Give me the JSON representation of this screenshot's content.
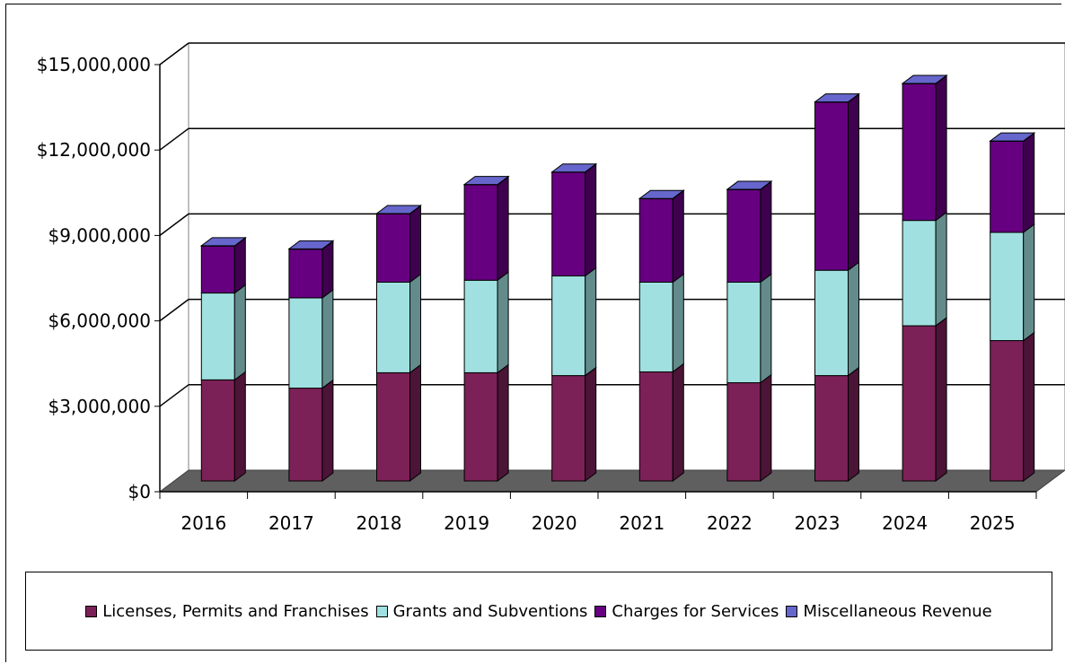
{
  "chart_data": {
    "type": "bar",
    "stacked": true,
    "title": "",
    "xlabel": "",
    "ylabel": "",
    "ylim": [
      0,
      15000000
    ],
    "grid": true,
    "legend_position": "bottom",
    "categories": [
      "2016",
      "2017",
      "2018",
      "2019",
      "2020",
      "2021",
      "2022",
      "2023",
      "2024",
      "2025"
    ],
    "y_tick_labels": [
      "$0",
      "$3,000,000",
      "$6,000,000",
      "$9,000,000",
      "$12,000,000",
      "$15,000,000"
    ],
    "y_tick_values": [
      0,
      3000000,
      6000000,
      9000000,
      12000000,
      15000000
    ],
    "series": [
      {
        "name": "Licenses, Permits and Franchises",
        "color": "#7b2157",
        "values": [
          3550000,
          3260000,
          3800000,
          3800000,
          3700000,
          3830000,
          3450000,
          3700000,
          5450000,
          4930000
        ]
      },
      {
        "name": "Grants and Subventions",
        "color": "#a0e0e0",
        "values": [
          3050000,
          3170000,
          3180000,
          3250000,
          3500000,
          3150000,
          3530000,
          3700000,
          3700000,
          3800000
        ]
      },
      {
        "name": "Charges for Services",
        "color": "#660080",
        "values": [
          1650000,
          1710000,
          2400000,
          3350000,
          3640000,
          2930000,
          3250000,
          5900000,
          4800000,
          3200000
        ]
      },
      {
        "name": "Miscellaneous Revenue",
        "color": "#6666cc",
        "values": [
          10000,
          10000,
          10000,
          10000,
          10000,
          10000,
          10000,
          10000,
          10000,
          10000
        ]
      }
    ]
  }
}
